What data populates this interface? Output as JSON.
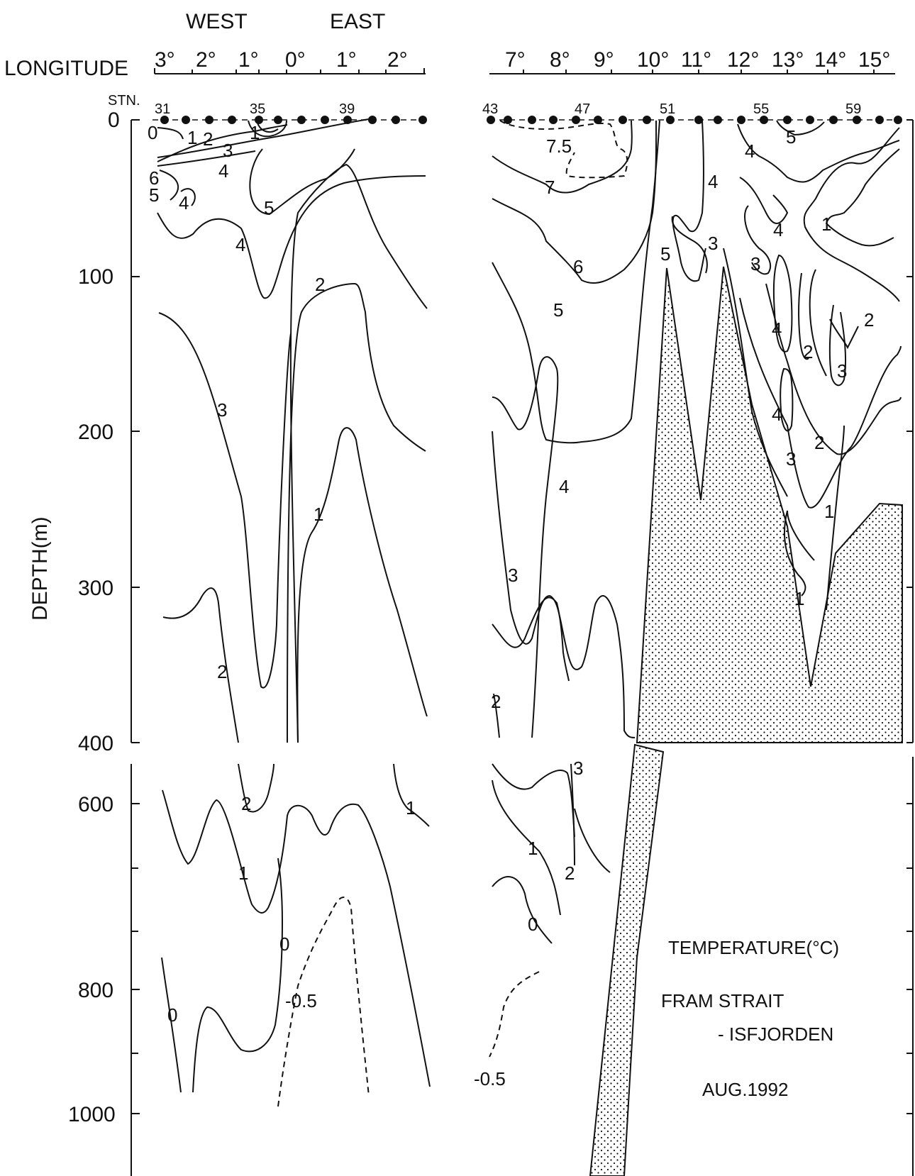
{
  "chart_data": {
    "type": "contour",
    "title": "TEMPERATURE(°C)",
    "subtitle_lines": [
      "FRAM STRAIT",
      "- ISFJORDEN"
    ],
    "date": "AUG.1992",
    "xlabel": "LONGITUDE",
    "ylabel": "DEPTH(m)",
    "hemisphere_labels": [
      "WEST",
      "EAST"
    ],
    "station_label": "STN.",
    "left_panel": {
      "longitude_ticks": [
        "3°",
        "2°",
        "1°",
        "0°",
        "1°",
        "2°"
      ],
      "station_numbers": [
        "31",
        "35",
        "39"
      ]
    },
    "right_panel": {
      "longitude_ticks": [
        "7°",
        "8°",
        "9°",
        "10°",
        "11°",
        "12°",
        "13°",
        "14°",
        "15°"
      ],
      "station_numbers": [
        "43",
        "47",
        "51",
        "55",
        "59"
      ]
    },
    "depth_ticks_upper": [
      "0",
      "100",
      "200",
      "300",
      "400"
    ],
    "depth_ticks_lower": [
      "600",
      "800",
      "1000"
    ],
    "isotherm_labels": [
      "0",
      "1",
      "2",
      "3",
      "4",
      "5",
      "6",
      "7",
      "7.5",
      "-0.5"
    ],
    "isotherm_levels": [
      -0.5,
      0,
      1,
      2,
      3,
      4,
      5,
      6,
      7,
      7.5
    ]
  }
}
